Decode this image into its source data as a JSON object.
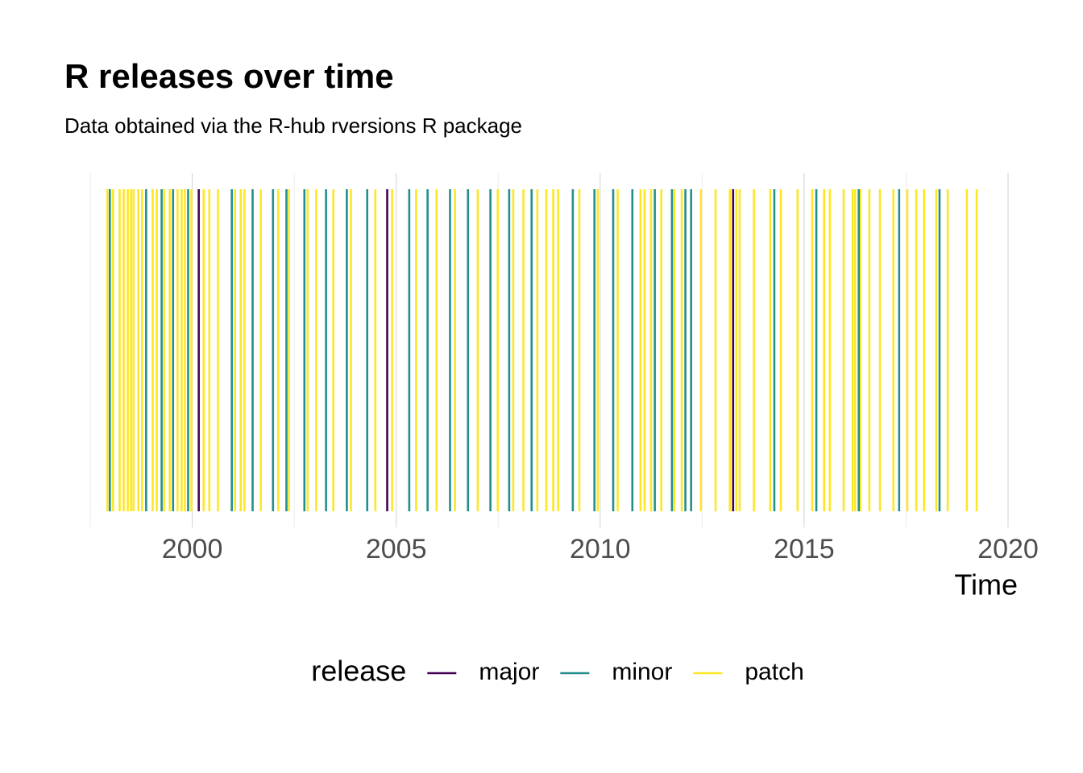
{
  "chart_data": {
    "type": "rug",
    "title": "R releases over time",
    "subtitle": "Data obtained via the R-hub rversions R package",
    "x_label": "Time",
    "legend_title": "release",
    "xlim": [
      1997.5,
      2020.0
    ],
    "xticks": [
      2000,
      2005,
      2010,
      2015,
      2020
    ],
    "grid": true,
    "legend_position": "bottom",
    "series": [
      {
        "name": "major",
        "color": "#440154",
        "x": [
          2000.16,
          2004.78,
          2013.26
        ]
      },
      {
        "name": "minor",
        "color": "#21908C",
        "x": [
          1997.98,
          1998.87,
          1999.25,
          1999.53,
          1999.9,
          2000.97,
          2001.48,
          2001.98,
          2002.31,
          2002.75,
          2003.28,
          2003.79,
          2004.29,
          2005.32,
          2005.77,
          2006.32,
          2006.76,
          2007.31,
          2007.77,
          2008.32,
          2009.33,
          2009.86,
          2010.32,
          2010.79,
          2011.34,
          2011.76,
          2012.09,
          2012.23,
          2014.27,
          2015.3,
          2016.34,
          2017.33,
          2018.32
        ]
      },
      {
        "name": "patch",
        "color": "#FDE725",
        "x": [
          1997.92,
          1998.06,
          1998.22,
          1998.32,
          1998.42,
          1998.5,
          1998.56,
          1998.68,
          1998.77,
          1999.03,
          1999.13,
          1999.31,
          1999.45,
          1999.64,
          1999.74,
          1999.82,
          1999.98,
          2000.28,
          2000.42,
          2000.63,
          2001.05,
          2001.19,
          2001.28,
          2001.68,
          2002.11,
          2002.37,
          2002.83,
          2003.04,
          2003.46,
          2003.89,
          2004.49,
          2004.9,
          2005.49,
          2005.99,
          2006.44,
          2007.0,
          2007.49,
          2007.87,
          2008.12,
          2008.46,
          2008.68,
          2008.85,
          2008.97,
          2009.49,
          2009.94,
          2010.43,
          2010.99,
          2011.09,
          2011.25,
          2011.5,
          2011.82,
          2012.0,
          2012.47,
          2012.83,
          2013.18,
          2013.34,
          2013.42,
          2013.77,
          2014.17,
          2014.43,
          2014.84,
          2015.2,
          2015.49,
          2015.63,
          2015.97,
          2016.19,
          2016.25,
          2016.38,
          2016.6,
          2016.86,
          2017.19,
          2017.53,
          2017.75,
          2017.94,
          2018.24,
          2018.52,
          2018.99,
          2019.23
        ]
      }
    ]
  }
}
